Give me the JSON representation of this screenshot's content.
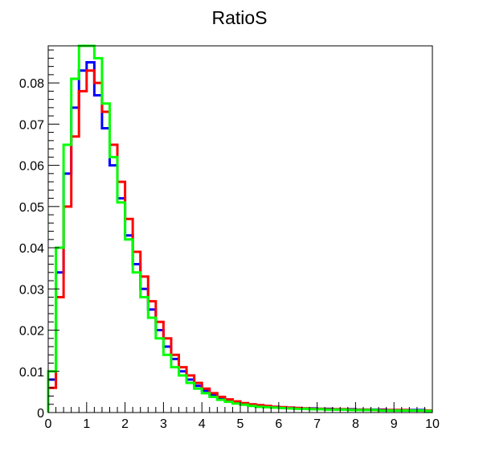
{
  "chart_data": {
    "type": "line",
    "title": "RatioS",
    "xlabel": "",
    "ylabel": "",
    "xlim": [
      0,
      10
    ],
    "ylim": [
      0,
      0.089
    ],
    "grid": false,
    "legend": "none",
    "bin_width": 0.2,
    "x_ticks": [
      "0",
      "1",
      "2",
      "3",
      "4",
      "5",
      "6",
      "7",
      "8",
      "9",
      "10"
    ],
    "y_ticks": [
      "0",
      "0.01",
      "0.02",
      "0.03",
      "0.04",
      "0.05",
      "0.06",
      "0.07",
      "0.08"
    ],
    "series": [
      {
        "color": "#0000ff",
        "values": [
          0.008,
          0.034,
          0.058,
          0.074,
          0.083,
          0.085,
          0.077,
          0.069,
          0.06,
          0.052,
          0.043,
          0.036,
          0.03,
          0.025,
          0.02,
          0.016,
          0.013,
          0.01,
          0.008,
          0.0065,
          0.0053,
          0.0043,
          0.0036,
          0.003,
          0.0025,
          0.0022,
          0.0019,
          0.0017,
          0.0015,
          0.0014,
          0.0013,
          0.0012,
          0.0011,
          0.001,
          0.001,
          0.0009,
          0.0009,
          0.0008,
          0.0008,
          0.0008,
          0.0007,
          0.0007,
          0.0007,
          0.0007,
          0.0006,
          0.0006,
          0.0006,
          0.0006,
          0.0006,
          0.0005
        ]
      },
      {
        "color": "#ff0000",
        "values": [
          0.006,
          0.028,
          0.05,
          0.067,
          0.078,
          0.083,
          0.08,
          0.073,
          0.065,
          0.056,
          0.047,
          0.039,
          0.033,
          0.027,
          0.022,
          0.018,
          0.014,
          0.011,
          0.009,
          0.0072,
          0.0058,
          0.0047,
          0.0038,
          0.0032,
          0.0027,
          0.0023,
          0.002,
          0.0018,
          0.0016,
          0.0014,
          0.0013,
          0.0012,
          0.0011,
          0.001,
          0.0009,
          0.0009,
          0.0008,
          0.0008,
          0.0008,
          0.0007,
          0.0007,
          0.0007,
          0.0006,
          0.0006,
          0.0006,
          0.0006,
          0.0006,
          0.0005,
          0.0005,
          0.0005
        ]
      },
      {
        "color": "#00ff00",
        "values": [
          0.01,
          0.04,
          0.065,
          0.081,
          0.089,
          0.089,
          0.086,
          0.075,
          0.062,
          0.051,
          0.042,
          0.034,
          0.028,
          0.023,
          0.018,
          0.014,
          0.011,
          0.009,
          0.0072,
          0.0058,
          0.0047,
          0.0038,
          0.0031,
          0.0026,
          0.0022,
          0.0019,
          0.0016,
          0.0014,
          0.0013,
          0.0012,
          0.0011,
          0.001,
          0.0009,
          0.0009,
          0.0008,
          0.0008,
          0.0007,
          0.0007,
          0.0007,
          0.0006,
          0.0006,
          0.0006,
          0.0006,
          0.0005,
          0.0005,
          0.0005,
          0.0005,
          0.0005,
          0.0005,
          0.0004
        ]
      }
    ]
  }
}
